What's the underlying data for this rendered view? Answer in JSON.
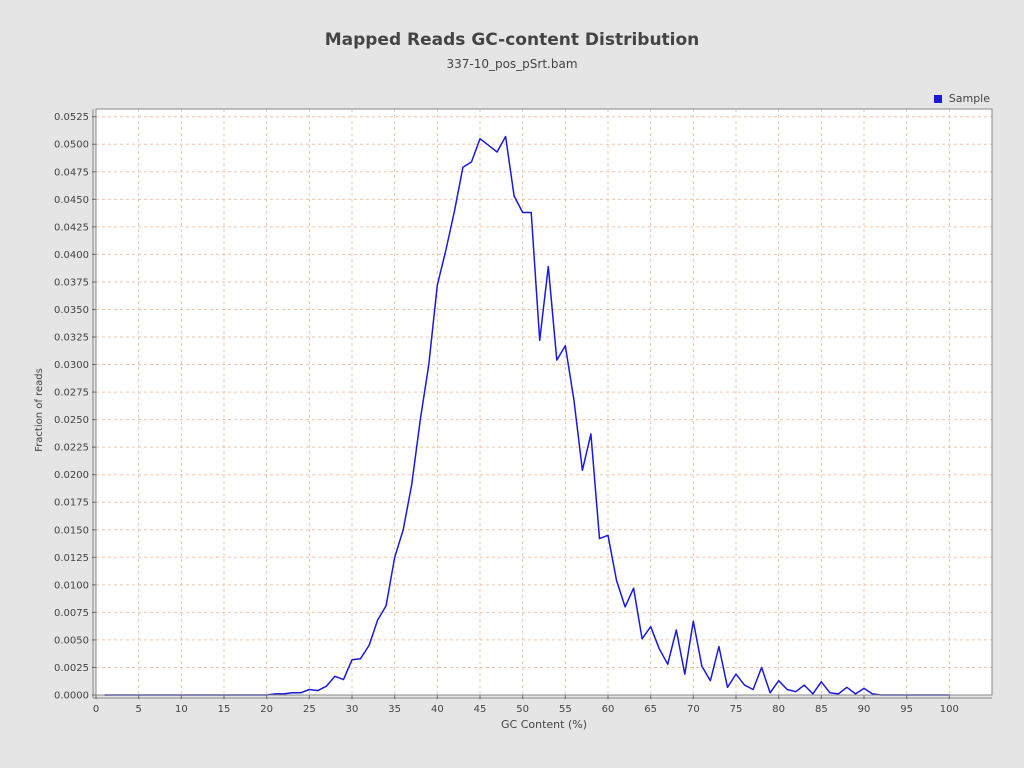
{
  "chart_data": {
    "type": "line",
    "title": "Mapped Reads GC-content Distribution",
    "subtitle": "337-10_pos_pSrt.bam",
    "xlabel": "GC Content (%)",
    "ylabel": "Fraction of reads",
    "xlim": [
      0,
      105
    ],
    "ylim": [
      0,
      0.0532
    ],
    "x_ticks": [
      0,
      5,
      10,
      15,
      20,
      25,
      30,
      35,
      40,
      45,
      50,
      55,
      60,
      65,
      70,
      75,
      80,
      85,
      90,
      95,
      100
    ],
    "x_tick_labels": [
      "0",
      "5",
      "10",
      "15",
      "20",
      "25",
      "30",
      "35",
      "40",
      "45",
      "50",
      "55",
      "60",
      "65",
      "70",
      "75",
      "80",
      "85",
      "90",
      "95",
      "100"
    ],
    "y_ticks": [
      0,
      0.0025,
      0.005,
      0.0075,
      0.01,
      0.0125,
      0.015,
      0.0175,
      0.02,
      0.0225,
      0.025,
      0.0275,
      0.03,
      0.0325,
      0.035,
      0.0375,
      0.04,
      0.0425,
      0.045,
      0.0475,
      0.05,
      0.0525
    ],
    "y_tick_labels": [
      "0.0000",
      "0.0025",
      "0.0050",
      "0.0075",
      "0.0100",
      "0.0125",
      "0.0150",
      "0.0175",
      "0.0200",
      "0.0225",
      "0.0250",
      "0.0275",
      "0.0300",
      "0.0325",
      "0.0350",
      "0.0375",
      "0.0400",
      "0.0425",
      "0.0450",
      "0.0475",
      "0.0500",
      "0.0525"
    ],
    "grid": true,
    "legend_position": "top-right",
    "series": [
      {
        "name": "Sample",
        "color": "#1a1ad8",
        "x": [
          1,
          2,
          3,
          4,
          5,
          6,
          7,
          8,
          9,
          10,
          11,
          12,
          13,
          14,
          15,
          16,
          17,
          18,
          19,
          20,
          21,
          22,
          23,
          24,
          25,
          26,
          27,
          28,
          29,
          30,
          31,
          32,
          33,
          34,
          35,
          36,
          37,
          38,
          39,
          40,
          41,
          42,
          43,
          44,
          45,
          46,
          47,
          48,
          49,
          50,
          51,
          52,
          53,
          54,
          55,
          56,
          57,
          58,
          59,
          60,
          61,
          62,
          63,
          64,
          65,
          66,
          67,
          68,
          69,
          70,
          71,
          72,
          73,
          74,
          75,
          76,
          77,
          78,
          79,
          80,
          81,
          82,
          83,
          84,
          85,
          86,
          87,
          88,
          89,
          90,
          91,
          92,
          93,
          94,
          95,
          96,
          97,
          98,
          99,
          100
        ],
        "values": [
          0,
          0,
          0,
          0,
          0,
          0,
          0,
          0,
          0,
          0,
          0,
          0,
          0,
          0,
          0,
          0,
          0,
          0,
          0,
          0,
          0.0001,
          0.0001,
          0.0002,
          0.0002,
          0.0005,
          0.0004,
          0.0008,
          0.0017,
          0.0014,
          0.0032,
          0.0033,
          0.0045,
          0.0068,
          0.0081,
          0.0125,
          0.015,
          0.0191,
          0.025,
          0.03,
          0.0372,
          0.0404,
          0.0439,
          0.0479,
          0.0484,
          0.0505,
          0.0499,
          0.0493,
          0.0507,
          0.0453,
          0.0438,
          0.0438,
          0.0322,
          0.0389,
          0.0304,
          0.0317,
          0.0268,
          0.0204,
          0.0237,
          0.0142,
          0.0145,
          0.0104,
          0.008,
          0.0097,
          0.0051,
          0.0062,
          0.0042,
          0.0028,
          0.0059,
          0.0019,
          0.0067,
          0.0026,
          0.0013,
          0.0044,
          0.0007,
          0.0019,
          0.0009,
          0.0005,
          0.0025,
          0.0002,
          0.0013,
          0.0005,
          0.0003,
          0.0009,
          0.0001,
          0.0012,
          0.0002,
          0.0001,
          0.0007,
          0.0001,
          0.0006,
          0.0001,
          0,
          0,
          0,
          0,
          0,
          0,
          0,
          0,
          0
        ]
      }
    ]
  }
}
